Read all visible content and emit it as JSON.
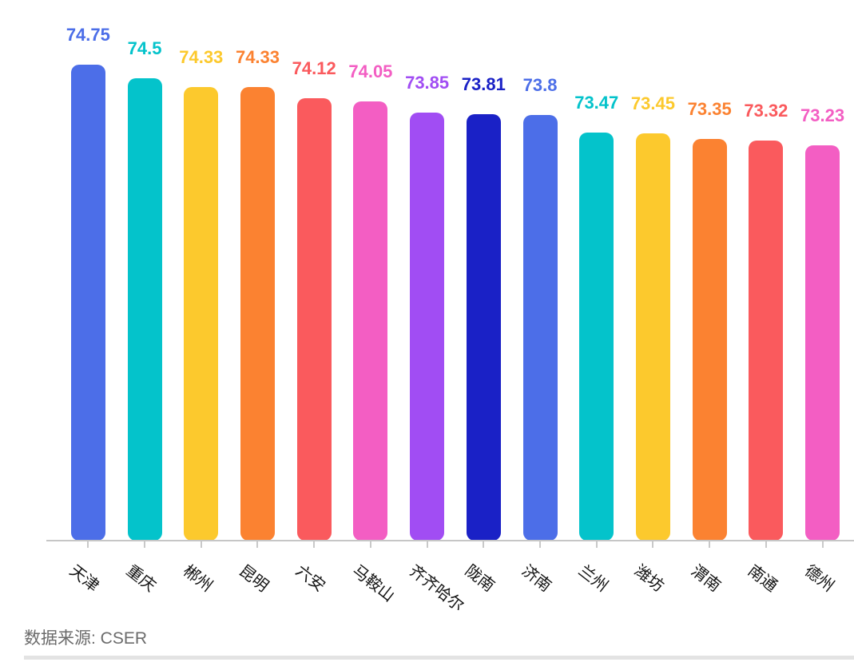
{
  "chart_data": {
    "type": "bar",
    "categories": [
      "天津",
      "重庆",
      "郴州",
      "昆明",
      "六安",
      "马鞍山",
      "齐齐哈尔",
      "陇南",
      "济南",
      "兰州",
      "潍坊",
      "渭南",
      "南通",
      "德州"
    ],
    "values": [
      74.75,
      74.5,
      74.33,
      74.33,
      74.12,
      74.05,
      73.85,
      73.81,
      73.8,
      73.47,
      73.45,
      73.35,
      73.32,
      73.23
    ],
    "value_labels": [
      "74.75",
      "74.5",
      "74.33",
      "74.33",
      "74.12",
      "74.05",
      "73.85",
      "73.81",
      "73.8",
      "73.47",
      "73.45",
      "73.35",
      "73.32",
      "73.23"
    ],
    "bar_colors": [
      "#4C6EE8",
      "#04C3CB",
      "#FCC92D",
      "#FB8231",
      "#FA5A5D",
      "#F35EC3",
      "#A14DF3",
      "#1A21C6",
      "#4C6EE8",
      "#04C3CB",
      "#FCC92D",
      "#FB8231",
      "#FA5A5D",
      "#F35EC3"
    ],
    "title": "",
    "xlabel": "",
    "ylabel": "",
    "ylim": [
      65.76,
      74.9
    ],
    "grid": false,
    "legend_position": "none",
    "value_labels_visible": true,
    "value_label_color_matches_bar": true,
    "x_label_rotation_deg": 38,
    "y_axis_visible": false,
    "note": "rightmost category label partially cropped at image edge"
  },
  "footer": {
    "source_text": "数据来源: CSER"
  }
}
